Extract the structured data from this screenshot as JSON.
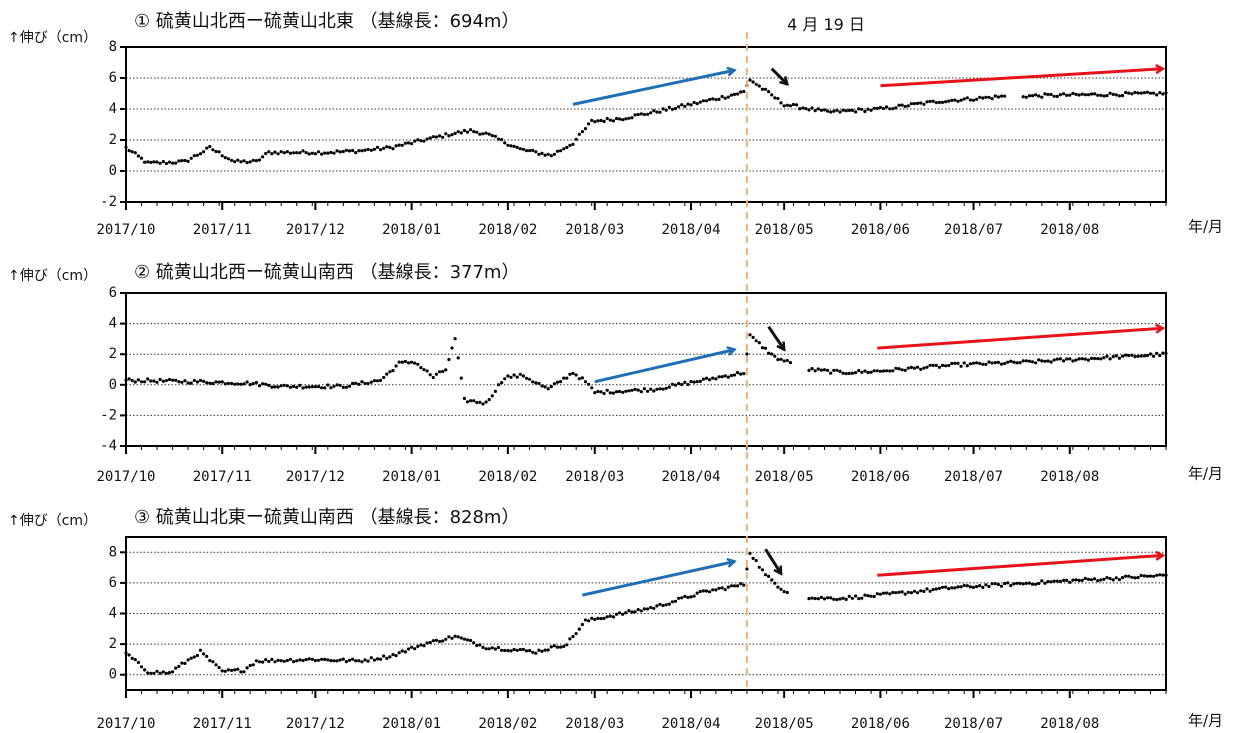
{
  "event_label": "4 月 19 日",
  "x_unit_label": "年/月",
  "y_axis_label": "↑伸び（cm）",
  "colors": {
    "blue": "#1f6fb5",
    "black": "#111111",
    "red": "#e8121b",
    "event_line": "#f5b07a",
    "points": "#000000"
  },
  "chart_data": [
    {
      "type": "scatter",
      "title": "① 硫黄山北西ー硫黄山北東 （基線長：694m）",
      "xlabel": "年/月",
      "ylabel": "↑伸び（cm）",
      "x_ticks": [
        "2017/10",
        "2017/11",
        "2017/12",
        "2018/01",
        "2018/02",
        "2018/03",
        "2018/04",
        "2018/05",
        "2018/06",
        "2018/07",
        "2018/08"
      ],
      "x_range": [
        "2017-10-01",
        "2018-09-01"
      ],
      "ylim": [
        -2,
        8
      ],
      "y_ticks": [
        -2,
        0,
        2,
        4,
        6,
        8
      ],
      "grid": "horizontal dotted",
      "event_date": "2018-04-19",
      "anchors": [
        [
          "2017-10-01",
          1.5
        ],
        [
          "2017-10-08",
          0.5
        ],
        [
          "2017-10-20",
          0.6
        ],
        [
          "2017-10-28",
          1.5
        ],
        [
          "2017-11-05",
          0.6
        ],
        [
          "2017-11-12",
          0.6
        ],
        [
          "2017-11-16",
          1.2
        ],
        [
          "2017-12-05",
          1.2
        ],
        [
          "2017-12-15",
          1.3
        ],
        [
          "2017-12-25",
          1.5
        ],
        [
          "2018-01-05",
          2.0
        ],
        [
          "2018-01-14",
          2.4
        ],
        [
          "2018-01-20",
          2.6
        ],
        [
          "2018-01-25",
          2.4
        ],
        [
          "2018-02-05",
          1.4
        ],
        [
          "2018-02-15",
          1.0
        ],
        [
          "2018-02-22",
          1.8
        ],
        [
          "2018-02-28",
          3.2
        ],
        [
          "2018-03-10",
          3.4
        ],
        [
          "2018-03-25",
          4.0
        ],
        [
          "2018-04-10",
          4.7
        ],
        [
          "2018-04-18",
          5.1
        ],
        [
          "2018-04-19",
          5.5
        ],
        [
          "2018-04-20",
          5.9
        ],
        [
          "2018-05-01",
          4.3
        ],
        [
          "2018-05-15",
          3.8
        ],
        [
          "2018-06-01",
          4.0
        ],
        [
          "2018-06-20",
          4.5
        ],
        [
          "2018-07-10",
          4.8
        ],
        [
          "2018-08-01",
          4.9
        ],
        [
          "2018-09-01",
          5.0
        ]
      ],
      "gaps": [
        [
          "2018-07-12",
          "2018-07-16"
        ]
      ],
      "arrows": [
        {
          "color": "blue",
          "from": [
            "2018-02-22",
            4.3
          ],
          "to": [
            "2018-04-15",
            6.5
          ]
        },
        {
          "color": "black",
          "from": [
            "2018-04-27",
            6.6
          ],
          "to": [
            "2018-05-02",
            5.6
          ]
        },
        {
          "color": "red",
          "from": [
            "2018-06-01",
            5.5
          ],
          "to": [
            "2018-08-31",
            6.6
          ]
        }
      ]
    },
    {
      "type": "scatter",
      "title": "② 硫黄山北西ー硫黄山南西 （基線長：377m）",
      "xlabel": "年/月",
      "ylabel": "↑伸び（cm）",
      "x_ticks": [
        "2017/10",
        "2017/11",
        "2017/12",
        "2018/01",
        "2018/02",
        "2018/03",
        "2018/04",
        "2018/05",
        "2018/06",
        "2018/07",
        "2018/08"
      ],
      "x_range": [
        "2017-10-01",
        "2018-09-01"
      ],
      "ylim": [
        -4,
        6
      ],
      "y_ticks": [
        -4,
        -2,
        0,
        2,
        4,
        6
      ],
      "grid": "horizontal dotted",
      "event_date": "2018-04-19",
      "anchors": [
        [
          "2017-10-01",
          0.3
        ],
        [
          "2017-10-25",
          0.2
        ],
        [
          "2017-11-10",
          0.1
        ],
        [
          "2017-11-20",
          -0.1
        ],
        [
          "2017-12-10",
          -0.1
        ],
        [
          "2017-12-22",
          0.3
        ],
        [
          "2017-12-28",
          1.4
        ],
        [
          "2018-01-02",
          1.5
        ],
        [
          "2018-01-08",
          0.5
        ],
        [
          "2018-01-12",
          1.0
        ],
        [
          "2018-01-15",
          3.0
        ],
        [
          "2018-01-18",
          -1.0
        ],
        [
          "2018-01-25",
          -1.2
        ],
        [
          "2018-01-31",
          0.5
        ],
        [
          "2018-02-06",
          0.6
        ],
        [
          "2018-02-14",
          -0.3
        ],
        [
          "2018-02-22",
          0.8
        ],
        [
          "2018-02-26",
          0.2
        ],
        [
          "2018-03-01",
          -0.5
        ],
        [
          "2018-03-20",
          -0.3
        ],
        [
          "2018-04-05",
          0.3
        ],
        [
          "2018-04-18",
          0.8
        ],
        [
          "2018-04-20",
          3.2
        ],
        [
          "2018-04-28",
          1.8
        ],
        [
          "2018-05-02",
          1.5
        ],
        [
          "2018-05-09",
          1.0
        ],
        [
          "2018-05-20",
          0.8
        ],
        [
          "2018-06-01",
          0.9
        ],
        [
          "2018-06-25",
          1.3
        ],
        [
          "2018-07-20",
          1.5
        ],
        [
          "2018-08-15",
          1.8
        ],
        [
          "2018-09-01",
          2.0
        ]
      ],
      "gaps": [
        [
          "2018-05-04",
          "2018-05-08"
        ]
      ],
      "arrows": [
        {
          "color": "blue",
          "from": [
            "2018-03-01",
            0.2
          ],
          "to": [
            "2018-04-15",
            2.3
          ]
        },
        {
          "color": "black",
          "from": [
            "2018-04-26",
            3.8
          ],
          "to": [
            "2018-05-01",
            2.3
          ]
        },
        {
          "color": "red",
          "from": [
            "2018-05-31",
            2.4
          ],
          "to": [
            "2018-08-31",
            3.7
          ]
        }
      ]
    },
    {
      "type": "scatter",
      "title": "③ 硫黄山北東ー硫黄山南西 （基線長：828m）",
      "xlabel": "年/月",
      "ylabel": "↑伸び（cm）",
      "x_ticks": [
        "2017/10",
        "2017/11",
        "2017/12",
        "2018/01",
        "2018/02",
        "2018/03",
        "2018/04",
        "2018/05",
        "2018/06",
        "2018/07",
        "2018/08"
      ],
      "x_range": [
        "2017-10-01",
        "2018-09-01"
      ],
      "ylim": [
        -1,
        9
      ],
      "y_ticks": [
        0,
        2,
        4,
        6,
        8
      ],
      "grid": "horizontal dotted",
      "event_date": "2018-04-19",
      "anchors": [
        [
          "2017-10-01",
          1.4
        ],
        [
          "2017-10-08",
          0.2
        ],
        [
          "2017-10-15",
          0.1
        ],
        [
          "2017-10-25",
          1.5
        ],
        [
          "2017-11-01",
          0.2
        ],
        [
          "2017-11-08",
          0.3
        ],
        [
          "2017-11-12",
          0.9
        ],
        [
          "2017-12-01",
          1.0
        ],
        [
          "2017-12-15",
          0.9
        ],
        [
          "2017-12-25",
          1.2
        ],
        [
          "2018-01-05",
          2.0
        ],
        [
          "2018-01-15",
          2.5
        ],
        [
          "2018-01-25",
          1.8
        ],
        [
          "2018-02-10",
          1.5
        ],
        [
          "2018-02-20",
          2.0
        ],
        [
          "2018-02-26",
          3.5
        ],
        [
          "2018-03-05",
          3.8
        ],
        [
          "2018-03-20",
          4.4
        ],
        [
          "2018-04-05",
          5.4
        ],
        [
          "2018-04-18",
          5.9
        ],
        [
          "2018-04-20",
          8.0
        ],
        [
          "2018-04-25",
          6.5
        ],
        [
          "2018-05-01",
          5.5
        ],
        [
          "2018-05-10",
          5.0
        ],
        [
          "2018-05-20",
          5.0
        ],
        [
          "2018-06-01",
          5.2
        ],
        [
          "2018-06-25",
          5.7
        ],
        [
          "2018-07-20",
          6.0
        ],
        [
          "2018-08-15",
          6.3
        ],
        [
          "2018-09-01",
          6.5
        ]
      ],
      "gaps": [
        [
          "2018-05-03",
          "2018-05-08"
        ]
      ],
      "arrows": [
        {
          "color": "blue",
          "from": [
            "2018-02-25",
            5.2
          ],
          "to": [
            "2018-04-15",
            7.4
          ]
        },
        {
          "color": "black",
          "from": [
            "2018-04-25",
            8.2
          ],
          "to": [
            "2018-04-30",
            6.6
          ]
        },
        {
          "color": "red",
          "from": [
            "2018-05-31",
            6.5
          ],
          "to": [
            "2018-08-31",
            7.8
          ]
        }
      ]
    }
  ]
}
